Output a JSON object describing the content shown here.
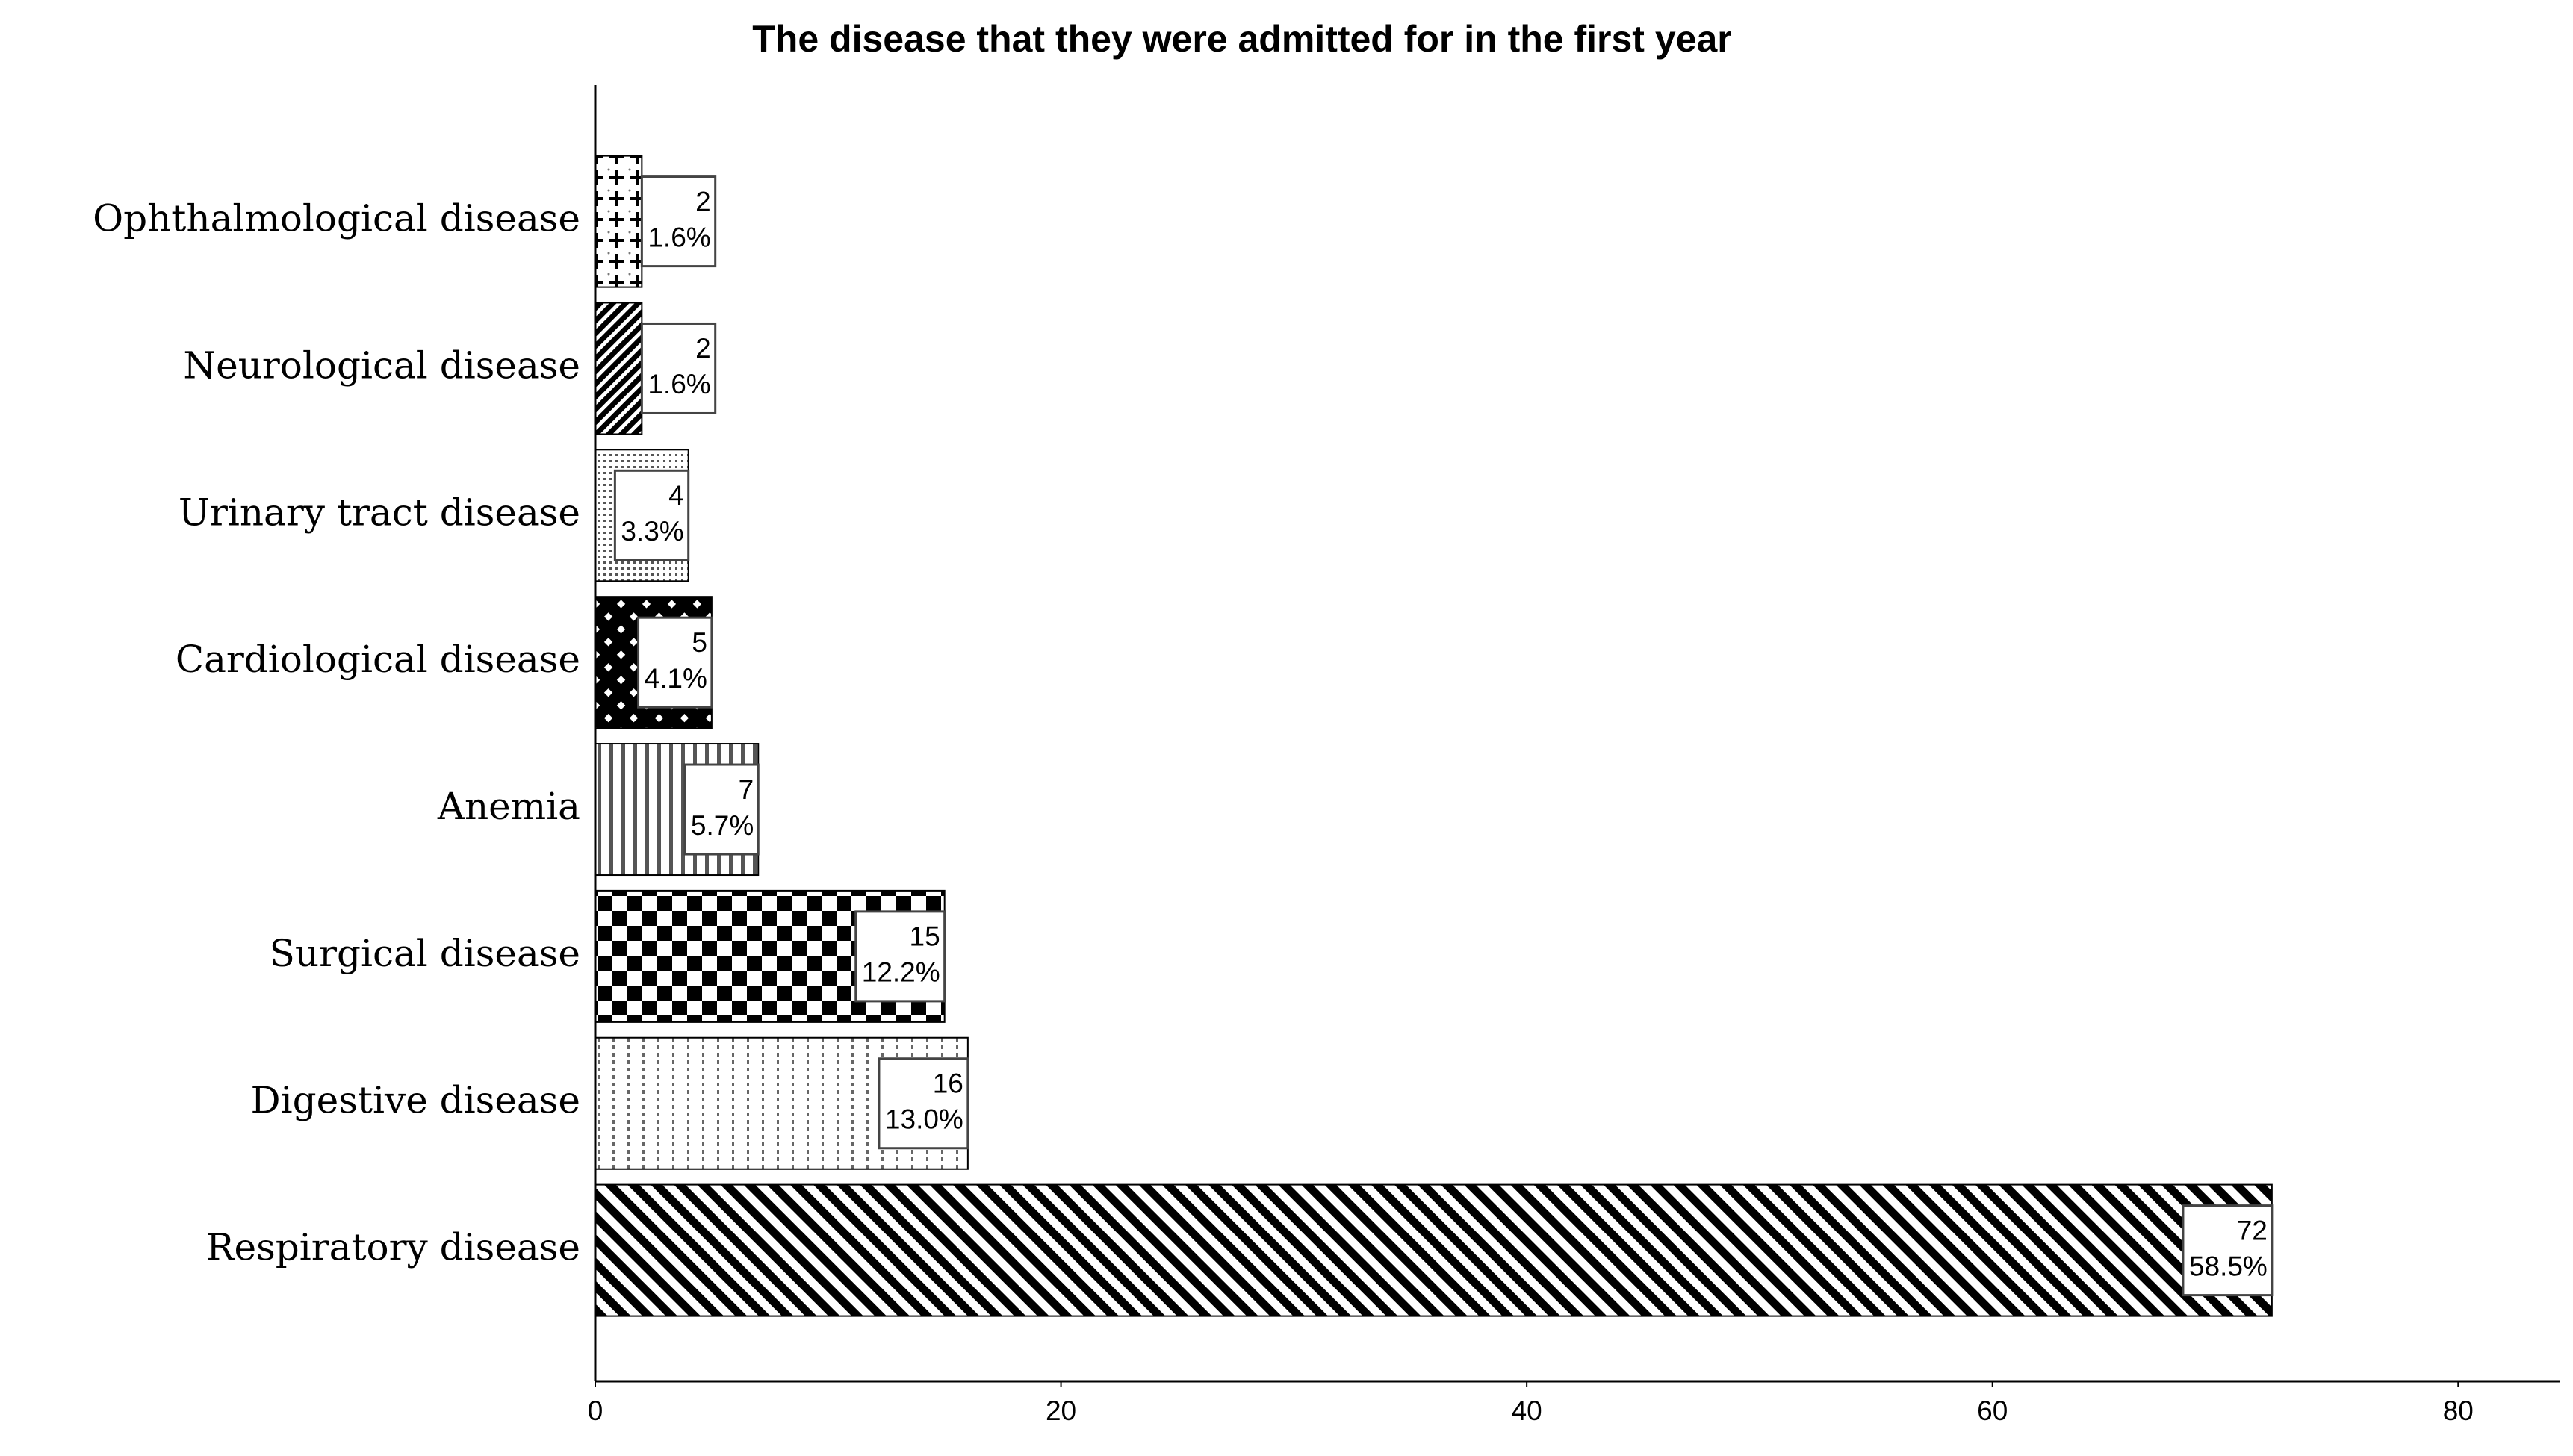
{
  "chart_data": {
    "type": "bar",
    "orientation": "horizontal",
    "title": "The disease that they were admitted for in the first year",
    "categories": [
      "Ophthalmological disease",
      "Neurological disease",
      "Urinary tract disease",
      "Cardiological disease",
      "Anemia",
      "Surgical disease",
      "Digestive disease",
      "Respiratory disease"
    ],
    "values": [
      2,
      2,
      4,
      5,
      7,
      15,
      16,
      72
    ],
    "percentages": [
      1.6,
      1.6,
      3.3,
      4.1,
      5.7,
      12.2,
      13.0,
      58.5
    ],
    "percentage_labels": [
      "1.6%",
      "1.6%",
      "3.3%",
      "4.1%",
      "5.7%",
      "12.2%",
      "13.0%",
      "58.5%"
    ],
    "color": "#000000",
    "xlim": [
      0,
      84
    ],
    "xticks": [
      0,
      20,
      40,
      60,
      80
    ],
    "grid": false
  }
}
